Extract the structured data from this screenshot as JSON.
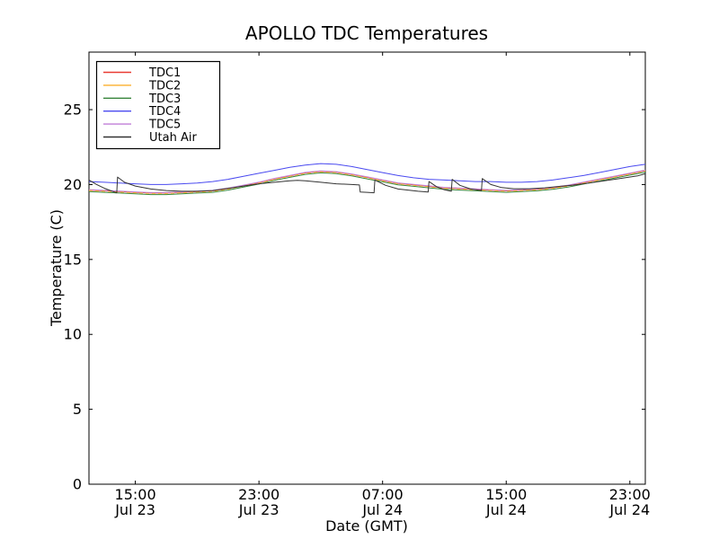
{
  "chart_data": {
    "type": "line",
    "title": "APOLLO TDC Temperatures",
    "xlabel": "Date (GMT)",
    "ylabel": "Temperature (C)",
    "x_unit": "hours since Jul 23 12:00 GMT",
    "xlim": [
      0,
      36
    ],
    "ylim": [
      0,
      28.84
    ],
    "grid": false,
    "legend_position": "upper-left",
    "y_ticks": [
      0,
      5,
      10,
      15,
      20,
      25
    ],
    "x_ticks": [
      {
        "t": 3,
        "time": "15:00",
        "date": "Jul 23"
      },
      {
        "t": 11,
        "time": "23:00",
        "date": "Jul 23"
      },
      {
        "t": 19,
        "time": "07:00",
        "date": "Jul 24"
      },
      {
        "t": 27,
        "time": "15:00",
        "date": "Jul 24"
      },
      {
        "t": 35,
        "time": "23:00",
        "date": "Jul 24"
      }
    ],
    "series": [
      {
        "name": "TDC1",
        "color": "#e93a32",
        "dash": "",
        "x": [
          0,
          1,
          2,
          3,
          4,
          5,
          6,
          7,
          8,
          9,
          10,
          11,
          12,
          13,
          14,
          15,
          16,
          17,
          18,
          19,
          20,
          21,
          22,
          23,
          24,
          25,
          26,
          27,
          28,
          29,
          30,
          31,
          32,
          33,
          34,
          35,
          36
        ],
        "y": [
          19.63,
          19.58,
          19.53,
          19.48,
          19.43,
          19.43,
          19.48,
          19.53,
          19.58,
          19.73,
          19.93,
          20.13,
          20.38,
          20.58,
          20.78,
          20.88,
          20.83,
          20.68,
          20.48,
          20.28,
          20.08,
          19.98,
          19.88,
          19.78,
          19.73,
          19.68,
          19.63,
          19.58,
          19.63,
          19.68,
          19.78,
          19.93,
          20.13,
          20.33,
          20.53,
          20.73,
          20.93
        ]
      },
      {
        "name": "TDC2",
        "color": "#fcaf2c",
        "dash": "4,3",
        "x": [
          0,
          1,
          2,
          3,
          4,
          5,
          6,
          7,
          8,
          9,
          10,
          11,
          12,
          13,
          14,
          15,
          16,
          17,
          18,
          19,
          20,
          21,
          22,
          23,
          24,
          25,
          26,
          27,
          28,
          29,
          30,
          31,
          32,
          33,
          34,
          35,
          36
        ],
        "y": [
          19.6,
          19.55,
          19.5,
          19.45,
          19.4,
          19.4,
          19.45,
          19.5,
          19.55,
          19.7,
          19.9,
          20.1,
          20.35,
          20.55,
          20.75,
          20.85,
          20.8,
          20.65,
          20.45,
          20.25,
          20.05,
          19.95,
          19.85,
          19.75,
          19.7,
          19.65,
          19.6,
          19.55,
          19.6,
          19.65,
          19.75,
          19.9,
          20.1,
          20.3,
          20.5,
          20.7,
          20.9
        ]
      },
      {
        "name": "TDC3",
        "color": "#37853b",
        "dash": "",
        "x": [
          0,
          1,
          2,
          3,
          4,
          5,
          6,
          7,
          8,
          9,
          10,
          11,
          12,
          13,
          14,
          15,
          16,
          17,
          18,
          19,
          20,
          21,
          22,
          23,
          24,
          25,
          26,
          27,
          28,
          29,
          30,
          31,
          32,
          33,
          34,
          35,
          36
        ],
        "y": [
          19.53,
          19.48,
          19.43,
          19.38,
          19.33,
          19.33,
          19.38,
          19.43,
          19.48,
          19.63,
          19.83,
          20.03,
          20.28,
          20.48,
          20.68,
          20.78,
          20.73,
          20.58,
          20.38,
          20.18,
          19.98,
          19.88,
          19.78,
          19.68,
          19.63,
          19.58,
          19.53,
          19.48,
          19.53,
          19.58,
          19.68,
          19.83,
          20.03,
          20.23,
          20.43,
          20.63,
          20.83
        ]
      },
      {
        "name": "TDC4",
        "color": "#4a4af0",
        "dash": "",
        "x": [
          0,
          1,
          2,
          3,
          4,
          5,
          6,
          7,
          8,
          9,
          10,
          11,
          12,
          13,
          14,
          15,
          16,
          17,
          18,
          19,
          20,
          21,
          22,
          23,
          24,
          25,
          26,
          27,
          28,
          29,
          30,
          31,
          32,
          33,
          34,
          35,
          36
        ],
        "y": [
          20.2,
          20.15,
          20.1,
          20.05,
          20.0,
          20.0,
          20.05,
          20.1,
          20.2,
          20.35,
          20.55,
          20.75,
          20.95,
          21.15,
          21.3,
          21.4,
          21.35,
          21.2,
          21.0,
          20.8,
          20.6,
          20.45,
          20.35,
          20.3,
          20.25,
          20.2,
          20.2,
          20.15,
          20.15,
          20.2,
          20.3,
          20.45,
          20.6,
          20.8,
          21.0,
          21.2,
          21.35
        ]
      },
      {
        "name": "TDC5",
        "color": "#c07fd8",
        "dash": "",
        "x": [
          0,
          1,
          2,
          3,
          4,
          5,
          6,
          7,
          8,
          9,
          10,
          11,
          12,
          13,
          14,
          15,
          16,
          17,
          18,
          19,
          20,
          21,
          22,
          23,
          24,
          25,
          26,
          27,
          28,
          29,
          30,
          31,
          32,
          33,
          34,
          35,
          36
        ],
        "y": [
          19.66,
          19.61,
          19.56,
          19.51,
          19.46,
          19.46,
          19.51,
          19.56,
          19.61,
          19.76,
          19.96,
          20.16,
          20.41,
          20.61,
          20.81,
          20.91,
          20.86,
          20.71,
          20.51,
          20.31,
          20.11,
          20.01,
          19.91,
          19.81,
          19.76,
          19.71,
          19.66,
          19.61,
          19.66,
          19.71,
          19.81,
          19.96,
          20.16,
          20.36,
          20.56,
          20.76,
          20.96
        ]
      },
      {
        "name": "Utah Air",
        "color": "#333333",
        "dash": "",
        "x": [
          0,
          0.5,
          1.0,
          1.5,
          1.8,
          1.85,
          2.3,
          3,
          4,
          5,
          6,
          7,
          8,
          9,
          10,
          11,
          12,
          13,
          13.5,
          14,
          15,
          16,
          17,
          17.5,
          17.55,
          18,
          18.45,
          18.5,
          19.2,
          20,
          21.3,
          21.95,
          22.0,
          22.5,
          23.0,
          23.45,
          23.5,
          24.0,
          24.7,
          25.4,
          25.45,
          26.0,
          26.7,
          27.5,
          28.5,
          29.5,
          30.5,
          31.5,
          32.5,
          33.5,
          34.5,
          35.5,
          36
        ],
        "y": [
          20.3,
          20.0,
          19.75,
          19.55,
          19.45,
          20.5,
          20.15,
          19.9,
          19.7,
          19.6,
          19.55,
          19.55,
          19.6,
          19.75,
          19.9,
          20.05,
          20.15,
          20.25,
          20.28,
          20.25,
          20.15,
          20.05,
          20.0,
          19.97,
          19.5,
          19.48,
          19.45,
          20.3,
          19.95,
          19.7,
          19.55,
          19.5,
          20.2,
          19.85,
          19.65,
          19.55,
          20.35,
          19.95,
          19.7,
          19.6,
          20.4,
          20.0,
          19.8,
          19.72,
          19.72,
          19.78,
          19.88,
          19.98,
          20.12,
          20.27,
          20.42,
          20.58,
          20.72
        ]
      }
    ]
  }
}
